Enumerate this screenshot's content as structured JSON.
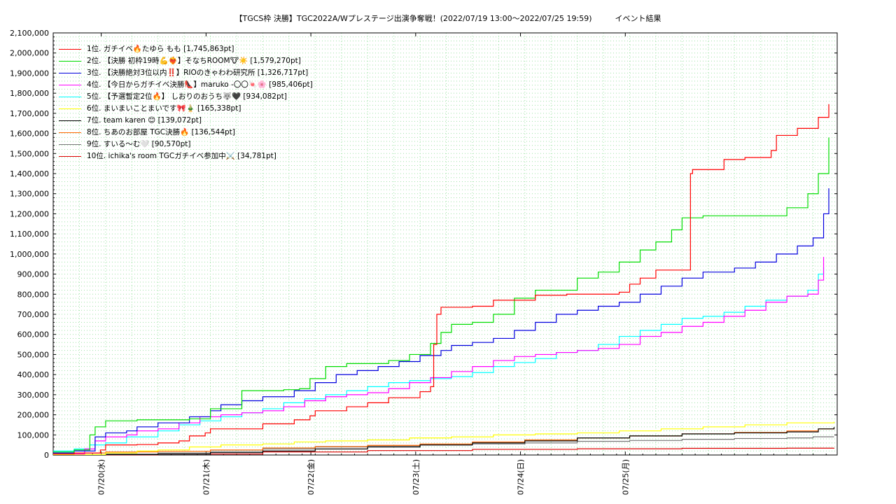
{
  "chart_data": {
    "type": "line",
    "title": "【TGCS枠 決勝】TGC2022A/Wプレステージ出演争奪戦！(2022/07/19 13:00～2022/07/25 19:59)　　　イベント結果",
    "xlabel": "",
    "ylabel": "",
    "x_ticks": [
      "07/20(水)",
      "07/21(木)",
      "07/22(金)",
      "07/23(土)",
      "07/24(日)",
      "07/25(月)"
    ],
    "x_range": [
      "2022-07-19 13:00",
      "2022-07-25 19:59"
    ],
    "ylim": [
      0,
      2100000
    ],
    "y_ticks": [
      "0",
      "100,000",
      "200,000",
      "300,000",
      "400,000",
      "500,000",
      "600,000",
      "700,000",
      "800,000",
      "900,000",
      "1,000,000",
      "1,100,000",
      "1,200,000",
      "1,300,000",
      "1,400,000",
      "1,500,000",
      "1,600,000",
      "1,700,000",
      "1,800,000",
      "1,900,000",
      "2,000,000",
      "2,100,000"
    ],
    "grid": true,
    "legend_position": "top-left",
    "series": [
      {
        "name": "1位. ガチイベ🔥たゆら もも [1,745,863pt]",
        "color": "#ff0000",
        "points": [
          [
            0,
            5000
          ],
          [
            0.2,
            10000
          ],
          [
            0.45,
            25000
          ],
          [
            0.5,
            50000
          ],
          [
            0.8,
            52000
          ],
          [
            1.0,
            60000
          ],
          [
            1.2,
            70000
          ],
          [
            1.3,
            95000
          ],
          [
            1.45,
            110000
          ],
          [
            1.5,
            130000
          ],
          [
            2.0,
            155000
          ],
          [
            2.3,
            175000
          ],
          [
            2.45,
            195000
          ],
          [
            2.5,
            220000
          ],
          [
            2.8,
            240000
          ],
          [
            3.0,
            260000
          ],
          [
            3.2,
            285000
          ],
          [
            3.5,
            315000
          ],
          [
            3.6,
            340000
          ],
          [
            3.63,
            550000
          ],
          [
            3.66,
            700000
          ],
          [
            3.7,
            735000
          ],
          [
            4.0,
            740000
          ],
          [
            4.2,
            770000
          ],
          [
            4.6,
            795000
          ],
          [
            4.9,
            800000
          ],
          [
            5.1,
            800000
          ],
          [
            5.4,
            810000
          ],
          [
            5.5,
            850000
          ],
          [
            5.6,
            880000
          ],
          [
            5.75,
            920000
          ],
          [
            6.05,
            920000
          ],
          [
            6.08,
            1400000
          ],
          [
            6.1,
            1420000
          ],
          [
            6.4,
            1470000
          ],
          [
            6.6,
            1480000
          ],
          [
            6.85,
            1515000
          ],
          [
            6.9,
            1590000
          ],
          [
            7.1,
            1625000
          ],
          [
            7.3,
            1680000
          ],
          [
            7.4,
            1745863
          ]
        ]
      },
      {
        "name": "2位. 【決勝 初枠19時💪❤️‍🔥】そなちROOM🐮☀️ [1,579,270pt]",
        "color": "#00dd00",
        "points": [
          [
            0,
            15000
          ],
          [
            0.2,
            25000
          ],
          [
            0.35,
            100000
          ],
          [
            0.4,
            140000
          ],
          [
            0.5,
            170000
          ],
          [
            0.8,
            175000
          ],
          [
            1.0,
            175000
          ],
          [
            1.3,
            180000
          ],
          [
            1.5,
            230000
          ],
          [
            1.8,
            320000
          ],
          [
            2.2,
            325000
          ],
          [
            2.35,
            330000
          ],
          [
            2.45,
            380000
          ],
          [
            2.6,
            440000
          ],
          [
            2.8,
            455000
          ],
          [
            3.2,
            470000
          ],
          [
            3.4,
            500000
          ],
          [
            3.6,
            555000
          ],
          [
            3.7,
            610000
          ],
          [
            3.8,
            650000
          ],
          [
            4.0,
            660000
          ],
          [
            4.2,
            700000
          ],
          [
            4.4,
            780000
          ],
          [
            4.6,
            820000
          ],
          [
            5.0,
            880000
          ],
          [
            5.2,
            910000
          ],
          [
            5.4,
            960000
          ],
          [
            5.6,
            1020000
          ],
          [
            5.75,
            1060000
          ],
          [
            5.9,
            1120000
          ],
          [
            6.0,
            1180000
          ],
          [
            6.2,
            1190000
          ],
          [
            6.6,
            1190000
          ],
          [
            6.95,
            1190000
          ],
          [
            7.0,
            1230000
          ],
          [
            7.2,
            1300000
          ],
          [
            7.3,
            1400000
          ],
          [
            7.4,
            1579270
          ]
        ]
      },
      {
        "name": "3位. 【決勝絶対3位以内‼️】RIOのきゃわわ研究所 [1,326,717pt]",
        "color": "#0000dd",
        "points": [
          [
            0,
            10000
          ],
          [
            0.2,
            20000
          ],
          [
            0.4,
            90000
          ],
          [
            0.5,
            110000
          ],
          [
            0.7,
            120000
          ],
          [
            0.8,
            140000
          ],
          [
            1.0,
            160000
          ],
          [
            1.3,
            190000
          ],
          [
            1.5,
            220000
          ],
          [
            1.6,
            250000
          ],
          [
            1.8,
            270000
          ],
          [
            2.0,
            290000
          ],
          [
            2.3,
            320000
          ],
          [
            2.5,
            360000
          ],
          [
            2.7,
            400000
          ],
          [
            2.9,
            420000
          ],
          [
            3.1,
            440000
          ],
          [
            3.3,
            465000
          ],
          [
            3.5,
            495000
          ],
          [
            3.7,
            520000
          ],
          [
            3.8,
            545000
          ],
          [
            4.0,
            560000
          ],
          [
            4.2,
            580000
          ],
          [
            4.4,
            620000
          ],
          [
            4.6,
            660000
          ],
          [
            4.8,
            700000
          ],
          [
            5.0,
            720000
          ],
          [
            5.2,
            740000
          ],
          [
            5.4,
            760000
          ],
          [
            5.6,
            800000
          ],
          [
            5.8,
            840000
          ],
          [
            6.0,
            880000
          ],
          [
            6.2,
            910000
          ],
          [
            6.5,
            930000
          ],
          [
            6.7,
            960000
          ],
          [
            6.9,
            1000000
          ],
          [
            7.1,
            1040000
          ],
          [
            7.25,
            1080000
          ],
          [
            7.35,
            1200000
          ],
          [
            7.4,
            1326717
          ]
        ]
      },
      {
        "name": "4位. 【今日からガチイベ決勝👠】maruko -〇〇🍬🌸 [985,406pt]",
        "color": "#ff00ff",
        "points": [
          [
            0,
            5000
          ],
          [
            0.3,
            30000
          ],
          [
            0.4,
            70000
          ],
          [
            0.5,
            90000
          ],
          [
            0.7,
            100000
          ],
          [
            0.8,
            120000
          ],
          [
            1.0,
            130000
          ],
          [
            1.2,
            160000
          ],
          [
            1.4,
            190000
          ],
          [
            1.6,
            200000
          ],
          [
            1.8,
            210000
          ],
          [
            2.0,
            220000
          ],
          [
            2.2,
            240000
          ],
          [
            2.4,
            270000
          ],
          [
            2.6,
            290000
          ],
          [
            2.8,
            300000
          ],
          [
            3.0,
            310000
          ],
          [
            3.2,
            330000
          ],
          [
            3.4,
            360000
          ],
          [
            3.6,
            385000
          ],
          [
            3.8,
            415000
          ],
          [
            4.0,
            440000
          ],
          [
            4.2,
            470000
          ],
          [
            4.4,
            490000
          ],
          [
            4.6,
            500000
          ],
          [
            4.8,
            510000
          ],
          [
            5.0,
            520000
          ],
          [
            5.2,
            530000
          ],
          [
            5.4,
            550000
          ],
          [
            5.6,
            590000
          ],
          [
            5.8,
            610000
          ],
          [
            6.0,
            640000
          ],
          [
            6.2,
            660000
          ],
          [
            6.4,
            690000
          ],
          [
            6.6,
            720000
          ],
          [
            6.8,
            760000
          ],
          [
            7.0,
            790000
          ],
          [
            7.2,
            800000
          ],
          [
            7.3,
            870000
          ],
          [
            7.35,
            985406
          ]
        ]
      },
      {
        "name": "5位. 【予選暫定2位🔥】 しおりのおうち🐺🖤 [934,082pt]",
        "color": "#00ffff",
        "points": [
          [
            0,
            20000
          ],
          [
            0.2,
            30000
          ],
          [
            0.35,
            50000
          ],
          [
            0.5,
            60000
          ],
          [
            0.7,
            90000
          ],
          [
            1.0,
            120000
          ],
          [
            1.2,
            150000
          ],
          [
            1.4,
            170000
          ],
          [
            1.6,
            190000
          ],
          [
            1.8,
            210000
          ],
          [
            2.0,
            230000
          ],
          [
            2.2,
            260000
          ],
          [
            2.4,
            280000
          ],
          [
            2.6,
            300000
          ],
          [
            2.8,
            320000
          ],
          [
            3.0,
            340000
          ],
          [
            3.2,
            360000
          ],
          [
            3.4,
            370000
          ],
          [
            3.6,
            380000
          ],
          [
            3.8,
            390000
          ],
          [
            4.0,
            410000
          ],
          [
            4.2,
            440000
          ],
          [
            4.4,
            460000
          ],
          [
            4.6,
            480000
          ],
          [
            4.8,
            510000
          ],
          [
            5.0,
            520000
          ],
          [
            5.2,
            550000
          ],
          [
            5.4,
            590000
          ],
          [
            5.6,
            620000
          ],
          [
            5.8,
            650000
          ],
          [
            6.0,
            680000
          ],
          [
            6.2,
            690000
          ],
          [
            6.4,
            710000
          ],
          [
            6.6,
            740000
          ],
          [
            6.8,
            770000
          ],
          [
            7.0,
            790000
          ],
          [
            7.2,
            820000
          ],
          [
            7.3,
            900000
          ],
          [
            7.35,
            934082
          ]
        ]
      },
      {
        "name": "6位. まいまいことまいです🎀🎍 [165,338pt]",
        "color": "#ffff00",
        "points": [
          [
            0,
            2000
          ],
          [
            0.5,
            10000
          ],
          [
            0.8,
            20000
          ],
          [
            1.0,
            25000
          ],
          [
            1.3,
            40000
          ],
          [
            1.6,
            50000
          ],
          [
            2.0,
            55000
          ],
          [
            2.3,
            65000
          ],
          [
            2.6,
            70000
          ],
          [
            3.0,
            75000
          ],
          [
            3.4,
            85000
          ],
          [
            3.8,
            90000
          ],
          [
            4.2,
            100000
          ],
          [
            4.6,
            105000
          ],
          [
            5.0,
            110000
          ],
          [
            5.4,
            120000
          ],
          [
            5.8,
            130000
          ],
          [
            6.2,
            140000
          ],
          [
            6.6,
            150000
          ],
          [
            7.0,
            160000
          ],
          [
            7.45,
            165338
          ]
        ]
      },
      {
        "name": "7位. team karen 😊 [139,072pt]",
        "color": "#000000",
        "points": [
          [
            0,
            0
          ],
          [
            0.5,
            2000
          ],
          [
            1.0,
            5000
          ],
          [
            1.5,
            12000
          ],
          [
            2.0,
            20000
          ],
          [
            2.5,
            30000
          ],
          [
            3.0,
            40000
          ],
          [
            3.5,
            50000
          ],
          [
            4.0,
            60000
          ],
          [
            4.5,
            70000
          ],
          [
            5.0,
            85000
          ],
          [
            5.5,
            95000
          ],
          [
            6.0,
            105000
          ],
          [
            6.5,
            110000
          ],
          [
            7.0,
            115000
          ],
          [
            7.3,
            130000
          ],
          [
            7.45,
            139072
          ]
        ]
      },
      {
        "name": "8位. ちあのお部屋 TGC決勝🔥 [136,544pt]",
        "color": "#ff6600",
        "points": [
          [
            0,
            10000
          ],
          [
            0.5,
            15000
          ],
          [
            1.0,
            18000
          ],
          [
            1.5,
            25000
          ],
          [
            2.0,
            35000
          ],
          [
            2.5,
            42000
          ],
          [
            3.0,
            48000
          ],
          [
            3.5,
            55000
          ],
          [
            4.0,
            65000
          ],
          [
            4.5,
            75000
          ],
          [
            5.0,
            85000
          ],
          [
            5.5,
            95000
          ],
          [
            6.0,
            105000
          ],
          [
            6.5,
            112000
          ],
          [
            7.0,
            120000
          ],
          [
            7.3,
            130000
          ],
          [
            7.45,
            136544
          ]
        ]
      },
      {
        "name": "9位. すいる〜む🤍 [90,570pt]",
        "color": "#777777",
        "points": [
          [
            0,
            1000
          ],
          [
            0.5,
            5000
          ],
          [
            1.0,
            10000
          ],
          [
            1.5,
            18000
          ],
          [
            2.0,
            30000
          ],
          [
            2.5,
            40000
          ],
          [
            3.0,
            45000
          ],
          [
            3.5,
            50000
          ],
          [
            4.0,
            55000
          ],
          [
            4.5,
            60000
          ],
          [
            5.0,
            68000
          ],
          [
            5.5,
            72000
          ],
          [
            6.0,
            78000
          ],
          [
            6.5,
            82000
          ],
          [
            7.0,
            85000
          ],
          [
            7.25,
            90570
          ],
          [
            7.45,
            90570
          ]
        ]
      },
      {
        "name": "10位. ichika's room TGCガチイベ参加中⚔️ [34,781pt]",
        "color": "#dd0000",
        "points": [
          [
            0,
            1000
          ],
          [
            1.0,
            5000
          ],
          [
            2.0,
            15000
          ],
          [
            3.0,
            22000
          ],
          [
            4.0,
            28000
          ],
          [
            5.0,
            31000
          ],
          [
            6.0,
            33000
          ],
          [
            7.0,
            34000
          ],
          [
            7.45,
            34781
          ]
        ]
      }
    ]
  }
}
